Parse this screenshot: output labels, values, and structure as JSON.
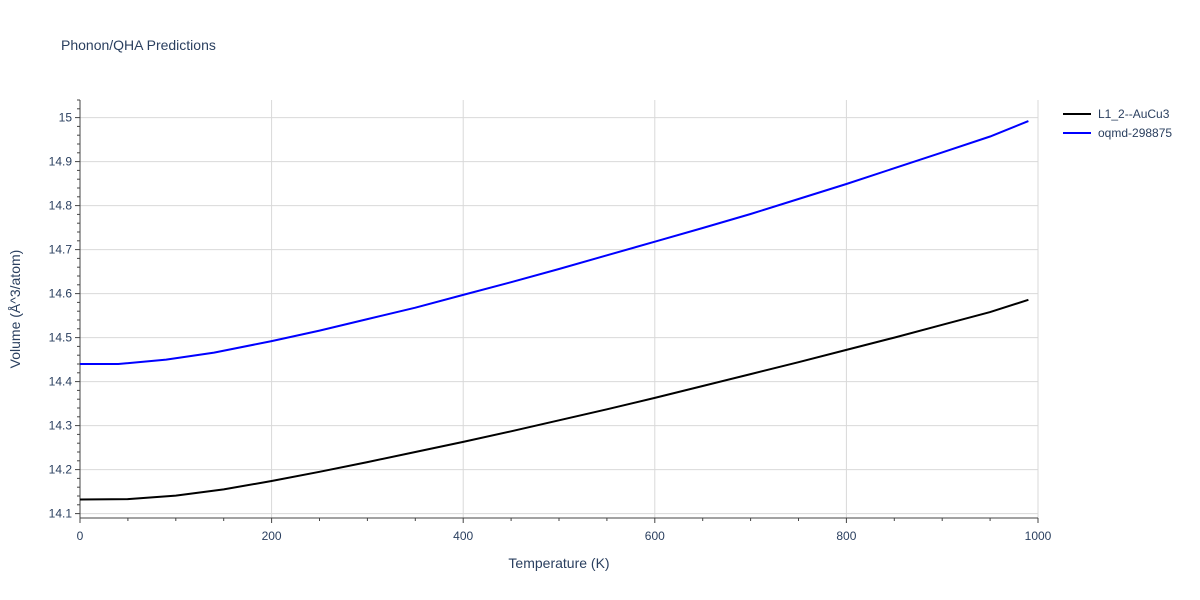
{
  "chart_data": {
    "type": "line",
    "title": "Phonon/QHA Predictions",
    "xlabel": "Temperature (K)",
    "ylabel": "Volume (Å^3/atom)",
    "xlim": [
      0,
      1000
    ],
    "ylim": [
      14.09,
      15.04
    ],
    "x_ticks": [
      0,
      200,
      400,
      600,
      800,
      1000
    ],
    "y_ticks": [
      14.1,
      14.2,
      14.3,
      14.4,
      14.5,
      14.6,
      14.7,
      14.8,
      14.9,
      15
    ],
    "grid": true,
    "legend_position": "top-right",
    "series": [
      {
        "name": "L1_2--AuCu3",
        "color": "#000000",
        "x": [
          0,
          50,
          100,
          150,
          200,
          250,
          300,
          350,
          400,
          450,
          500,
          550,
          600,
          650,
          700,
          750,
          800,
          850,
          900,
          950,
          990
        ],
        "y": [
          14.132,
          14.133,
          14.141,
          14.155,
          14.174,
          14.195,
          14.217,
          14.24,
          14.263,
          14.287,
          14.312,
          14.337,
          14.363,
          14.39,
          14.417,
          14.444,
          14.472,
          14.5,
          14.529,
          14.558,
          14.586
        ]
      },
      {
        "name": "oqmd-298875",
        "color": "#0000ff",
        "x": [
          0,
          40,
          90,
          140,
          200,
          250,
          300,
          350,
          400,
          450,
          500,
          550,
          600,
          650,
          700,
          750,
          800,
          850,
          900,
          950,
          990
        ],
        "y": [
          14.44,
          14.44,
          14.45,
          14.466,
          14.492,
          14.516,
          14.542,
          14.568,
          14.597,
          14.626,
          14.656,
          14.687,
          14.718,
          14.749,
          14.781,
          14.815,
          14.849,
          14.885,
          14.921,
          14.957,
          14.992
        ]
      }
    ]
  }
}
